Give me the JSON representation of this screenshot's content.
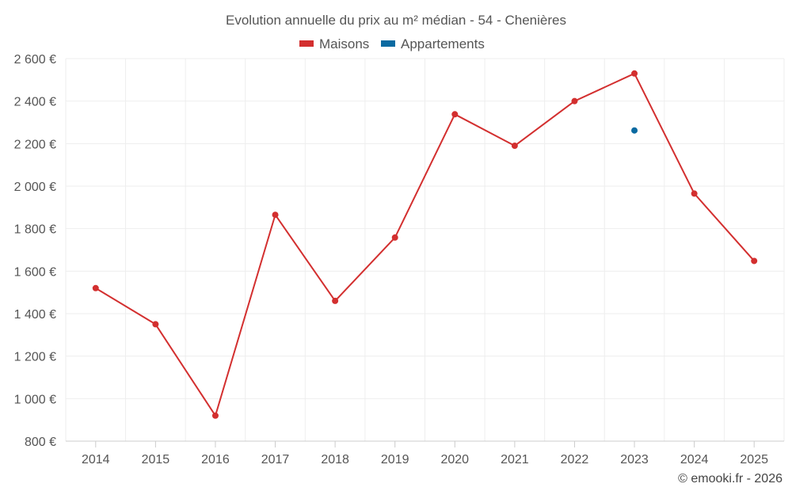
{
  "chart_data": {
    "type": "line",
    "title": "Evolution annuelle du prix au m² médian - 54 - Chenières",
    "categories": [
      "2014",
      "2015",
      "2016",
      "2017",
      "2018",
      "2019",
      "2020",
      "2021",
      "2022",
      "2023",
      "2024",
      "2025"
    ],
    "series": [
      {
        "name": "Maisons",
        "color": "#d32f2f",
        "values": [
          1520,
          1350,
          920,
          1865,
          1460,
          1758,
          2338,
          2190,
          2400,
          2530,
          1965,
          1648
        ]
      },
      {
        "name": "Appartements",
        "color": "#0a6aa1",
        "values": [
          null,
          null,
          null,
          null,
          null,
          null,
          null,
          null,
          null,
          2262,
          null,
          null
        ]
      }
    ],
    "y_ticks": [
      {
        "value": 800,
        "label": "800 €"
      },
      {
        "value": 1000,
        "label": "1 000 €"
      },
      {
        "value": 1200,
        "label": "1 200 €"
      },
      {
        "value": 1400,
        "label": "1 400 €"
      },
      {
        "value": 1600,
        "label": "1 600 €"
      },
      {
        "value": 1800,
        "label": "1 800 €"
      },
      {
        "value": 2000,
        "label": "2 000 €"
      },
      {
        "value": 2200,
        "label": "2 200 €"
      },
      {
        "value": 2400,
        "label": "2 400 €"
      },
      {
        "value": 2600,
        "label": "2 600 €"
      }
    ],
    "ylim": [
      800,
      2600
    ],
    "xlabel": "",
    "ylabel": "",
    "grid": true,
    "legend_position": "top-center"
  },
  "credit": "© emooki.fr - 2026"
}
